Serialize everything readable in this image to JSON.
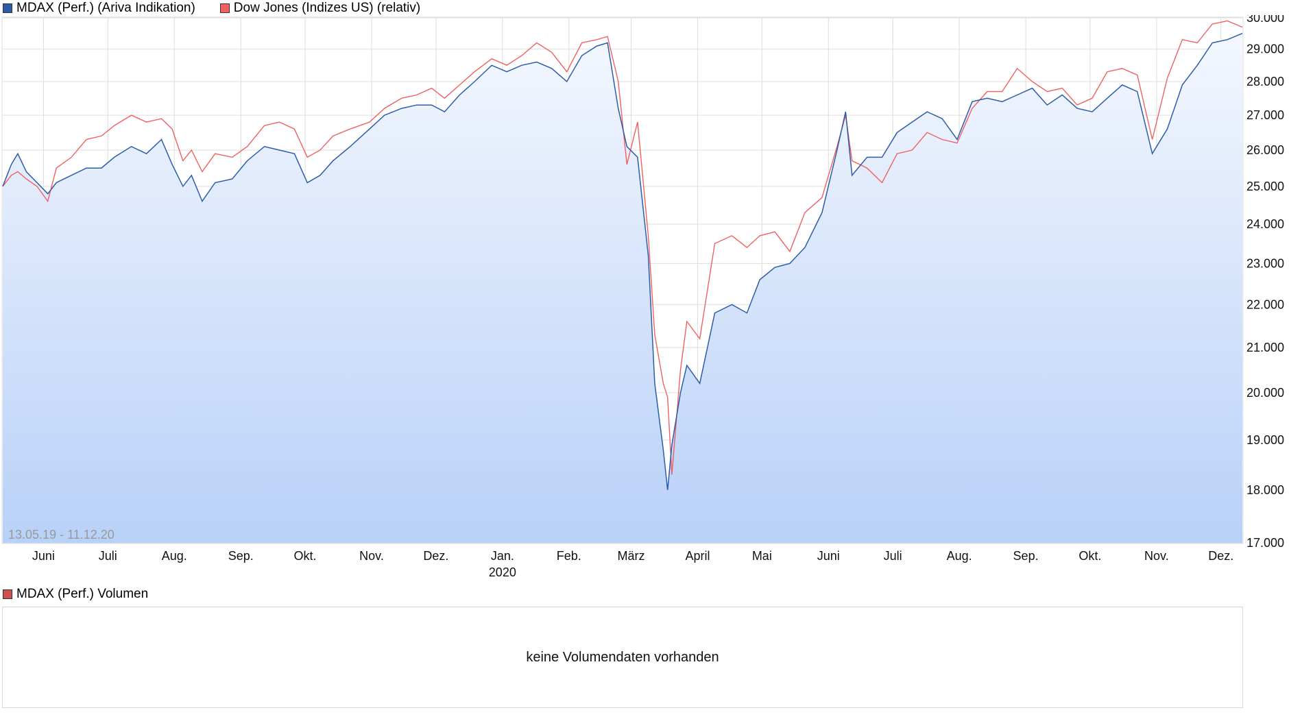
{
  "legend": {
    "series1_label": "MDAX (Perf.) (Ariva Indikation)",
    "series2_label": "Dow Jones (Indizes US) (relativ)"
  },
  "range_label": "13.05.19 - 11.12.20",
  "volume": {
    "legend_label": "MDAX (Perf.) Volumen",
    "message": "keine Volumendaten vorhanden"
  },
  "colors": {
    "mdax": "#2a5caa",
    "dow": "#f06060",
    "area_top": "#f4f7fe",
    "area_bottom": "#b8d1f8",
    "grid": "#dddddd"
  },
  "chart_data": {
    "type": "line",
    "x_ticks": [
      "Juni",
      "Juli",
      "Aug.",
      "Sep.",
      "Okt.",
      "Nov.",
      "Dez.",
      "Jan.",
      "Feb.",
      "März",
      "April",
      "Mai",
      "Juni",
      "Juli",
      "Aug.",
      "Sep.",
      "Okt.",
      "Nov.",
      "Dez."
    ],
    "x_sublabel": "2020",
    "y_ticks": [
      "17.000",
      "18.000",
      "19.000",
      "20.000",
      "21.000",
      "22.000",
      "23.000",
      "24.000",
      "25.000",
      "26.000",
      "27.000",
      "28.000",
      "29.000",
      "30.000"
    ],
    "ylim": [
      17000,
      30000
    ],
    "y_scale": "log",
    "grid": true,
    "legend_position": "top-left",
    "x_start": "2019-05-13",
    "x_end": "2020-12-11",
    "series": [
      {
        "name": "MDAX (Perf.) (Ariva Indikation)",
        "color": "#2a5caa",
        "points": [
          [
            "2019-05-13",
            25000
          ],
          [
            "2019-05-17",
            25600
          ],
          [
            "2019-05-20",
            25900
          ],
          [
            "2019-05-24",
            25400
          ],
          [
            "2019-05-29",
            25100
          ],
          [
            "2019-06-03",
            24800
          ],
          [
            "2019-06-07",
            25100
          ],
          [
            "2019-06-14",
            25300
          ],
          [
            "2019-06-21",
            25500
          ],
          [
            "2019-06-28",
            25500
          ],
          [
            "2019-07-04",
            25800
          ],
          [
            "2019-07-12",
            26100
          ],
          [
            "2019-07-19",
            25900
          ],
          [
            "2019-07-26",
            26300
          ],
          [
            "2019-07-31",
            25600
          ],
          [
            "2019-08-05",
            25000
          ],
          [
            "2019-08-09",
            25300
          ],
          [
            "2019-08-14",
            24600
          ],
          [
            "2019-08-20",
            25100
          ],
          [
            "2019-08-28",
            25200
          ],
          [
            "2019-09-04",
            25700
          ],
          [
            "2019-09-12",
            26100
          ],
          [
            "2019-09-19",
            26000
          ],
          [
            "2019-09-26",
            25900
          ],
          [
            "2019-10-02",
            25100
          ],
          [
            "2019-10-08",
            25300
          ],
          [
            "2019-10-14",
            25700
          ],
          [
            "2019-10-22",
            26100
          ],
          [
            "2019-10-31",
            26600
          ],
          [
            "2019-11-07",
            27000
          ],
          [
            "2019-11-15",
            27200
          ],
          [
            "2019-11-22",
            27300
          ],
          [
            "2019-11-29",
            27300
          ],
          [
            "2019-12-05",
            27100
          ],
          [
            "2019-12-12",
            27600
          ],
          [
            "2019-12-19",
            28000
          ],
          [
            "2019-12-27",
            28500
          ],
          [
            "2020-01-03",
            28300
          ],
          [
            "2020-01-10",
            28500
          ],
          [
            "2020-01-17",
            28600
          ],
          [
            "2020-01-24",
            28400
          ],
          [
            "2020-01-31",
            28000
          ],
          [
            "2020-02-07",
            28800
          ],
          [
            "2020-02-14",
            29100
          ],
          [
            "2020-02-19",
            29200
          ],
          [
            "2020-02-24",
            27200
          ],
          [
            "2020-02-28",
            26100
          ],
          [
            "2020-03-04",
            25800
          ],
          [
            "2020-03-09",
            23200
          ],
          [
            "2020-03-12",
            20200
          ],
          [
            "2020-03-16",
            18800
          ],
          [
            "2020-03-18",
            18000
          ],
          [
            "2020-03-20",
            18900
          ],
          [
            "2020-03-24",
            20000
          ],
          [
            "2020-03-27",
            20600
          ],
          [
            "2020-04-02",
            20200
          ],
          [
            "2020-04-09",
            21800
          ],
          [
            "2020-04-17",
            22000
          ],
          [
            "2020-04-24",
            21800
          ],
          [
            "2020-04-30",
            22600
          ],
          [
            "2020-05-07",
            22900
          ],
          [
            "2020-05-14",
            23000
          ],
          [
            "2020-05-21",
            23400
          ],
          [
            "2020-05-29",
            24300
          ],
          [
            "2020-06-05",
            26000
          ],
          [
            "2020-06-09",
            27100
          ],
          [
            "2020-06-12",
            25300
          ],
          [
            "2020-06-19",
            25800
          ],
          [
            "2020-06-26",
            25800
          ],
          [
            "2020-07-03",
            26500
          ],
          [
            "2020-07-10",
            26800
          ],
          [
            "2020-07-17",
            27100
          ],
          [
            "2020-07-24",
            26900
          ],
          [
            "2020-07-31",
            26300
          ],
          [
            "2020-08-07",
            27400
          ],
          [
            "2020-08-14",
            27500
          ],
          [
            "2020-08-21",
            27400
          ],
          [
            "2020-08-28",
            27600
          ],
          [
            "2020-09-04",
            27800
          ],
          [
            "2020-09-11",
            27300
          ],
          [
            "2020-09-18",
            27600
          ],
          [
            "2020-09-25",
            27200
          ],
          [
            "2020-10-02",
            27100
          ],
          [
            "2020-10-09",
            27500
          ],
          [
            "2020-10-16",
            27900
          ],
          [
            "2020-10-23",
            27700
          ],
          [
            "2020-10-30",
            25900
          ],
          [
            "2020-11-06",
            26600
          ],
          [
            "2020-11-13",
            27900
          ],
          [
            "2020-11-20",
            28500
          ],
          [
            "2020-11-27",
            29200
          ],
          [
            "2020-12-04",
            29300
          ],
          [
            "2020-12-11",
            29500
          ]
        ]
      },
      {
        "name": "Dow Jones (Indizes US) (relativ)",
        "color": "#f06060",
        "points": [
          [
            "2019-05-13",
            25000
          ],
          [
            "2019-05-17",
            25300
          ],
          [
            "2019-05-20",
            25400
          ],
          [
            "2019-05-24",
            25200
          ],
          [
            "2019-05-29",
            25000
          ],
          [
            "2019-06-03",
            24600
          ],
          [
            "2019-06-07",
            25500
          ],
          [
            "2019-06-14",
            25800
          ],
          [
            "2019-06-21",
            26300
          ],
          [
            "2019-06-28",
            26400
          ],
          [
            "2019-07-04",
            26700
          ],
          [
            "2019-07-12",
            27000
          ],
          [
            "2019-07-19",
            26800
          ],
          [
            "2019-07-26",
            26900
          ],
          [
            "2019-07-31",
            26600
          ],
          [
            "2019-08-05",
            25700
          ],
          [
            "2019-08-09",
            26000
          ],
          [
            "2019-08-14",
            25400
          ],
          [
            "2019-08-20",
            25900
          ],
          [
            "2019-08-28",
            25800
          ],
          [
            "2019-09-04",
            26100
          ],
          [
            "2019-09-12",
            26700
          ],
          [
            "2019-09-19",
            26800
          ],
          [
            "2019-09-26",
            26600
          ],
          [
            "2019-10-02",
            25800
          ],
          [
            "2019-10-08",
            26000
          ],
          [
            "2019-10-14",
            26400
          ],
          [
            "2019-10-22",
            26600
          ],
          [
            "2019-10-31",
            26800
          ],
          [
            "2019-11-07",
            27200
          ],
          [
            "2019-11-15",
            27500
          ],
          [
            "2019-11-22",
            27600
          ],
          [
            "2019-11-29",
            27800
          ],
          [
            "2019-12-05",
            27500
          ],
          [
            "2019-12-12",
            27900
          ],
          [
            "2019-12-19",
            28300
          ],
          [
            "2019-12-27",
            28700
          ],
          [
            "2020-01-03",
            28500
          ],
          [
            "2020-01-10",
            28800
          ],
          [
            "2020-01-17",
            29200
          ],
          [
            "2020-01-24",
            28900
          ],
          [
            "2020-01-31",
            28300
          ],
          [
            "2020-02-07",
            29200
          ],
          [
            "2020-02-14",
            29300
          ],
          [
            "2020-02-19",
            29400
          ],
          [
            "2020-02-24",
            28000
          ],
          [
            "2020-02-28",
            25600
          ],
          [
            "2020-03-04",
            26800
          ],
          [
            "2020-03-09",
            23700
          ],
          [
            "2020-03-12",
            21300
          ],
          [
            "2020-03-16",
            20200
          ],
          [
            "2020-03-18",
            19900
          ],
          [
            "2020-03-20",
            18300
          ],
          [
            "2020-03-24",
            20500
          ],
          [
            "2020-03-27",
            21600
          ],
          [
            "2020-04-02",
            21200
          ],
          [
            "2020-04-09",
            23500
          ],
          [
            "2020-04-17",
            23700
          ],
          [
            "2020-04-24",
            23400
          ],
          [
            "2020-04-30",
            23700
          ],
          [
            "2020-05-07",
            23800
          ],
          [
            "2020-05-14",
            23300
          ],
          [
            "2020-05-21",
            24300
          ],
          [
            "2020-05-29",
            24700
          ],
          [
            "2020-06-05",
            26100
          ],
          [
            "2020-06-09",
            27000
          ],
          [
            "2020-06-12",
            25700
          ],
          [
            "2020-06-19",
            25500
          ],
          [
            "2020-06-26",
            25100
          ],
          [
            "2020-07-03",
            25900
          ],
          [
            "2020-07-10",
            26000
          ],
          [
            "2020-07-17",
            26500
          ],
          [
            "2020-07-24",
            26300
          ],
          [
            "2020-07-31",
            26200
          ],
          [
            "2020-08-07",
            27200
          ],
          [
            "2020-08-14",
            27700
          ],
          [
            "2020-08-21",
            27700
          ],
          [
            "2020-08-28",
            28400
          ],
          [
            "2020-09-04",
            28000
          ],
          [
            "2020-09-11",
            27700
          ],
          [
            "2020-09-18",
            27800
          ],
          [
            "2020-09-25",
            27300
          ],
          [
            "2020-10-02",
            27500
          ],
          [
            "2020-10-09",
            28300
          ],
          [
            "2020-10-16",
            28400
          ],
          [
            "2020-10-23",
            28200
          ],
          [
            "2020-10-30",
            26300
          ],
          [
            "2020-11-06",
            28100
          ],
          [
            "2020-11-13",
            29300
          ],
          [
            "2020-11-20",
            29200
          ],
          [
            "2020-11-27",
            29800
          ],
          [
            "2020-12-04",
            29900
          ],
          [
            "2020-12-11",
            29700
          ]
        ]
      }
    ]
  }
}
